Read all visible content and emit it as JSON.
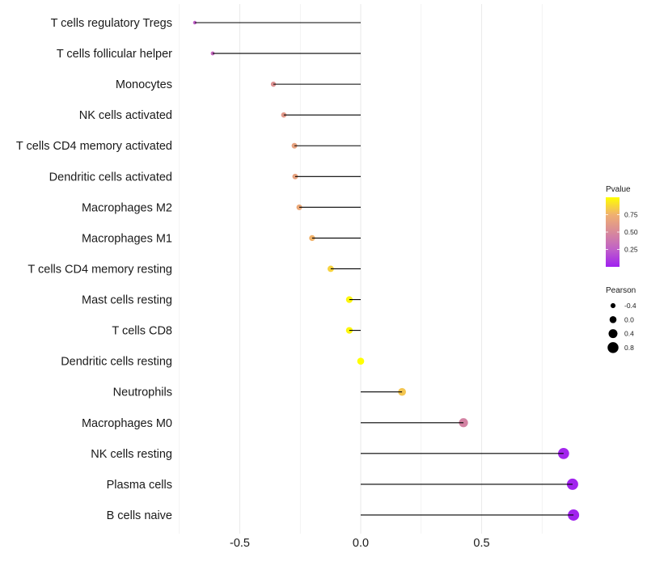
{
  "chart_data": {
    "type": "lollipop",
    "title": "",
    "xlabel": "",
    "ylabel": "",
    "xlim": [
      -0.75,
      0.9
    ],
    "xticks": [
      -0.5,
      0.0,
      0.5
    ],
    "xtick_labels": [
      "-0.5",
      "0.0",
      "0.5"
    ],
    "grid": true,
    "categories": [
      "T cells regulatory  Tregs",
      "T cells follicular helper",
      "Monocytes",
      "NK cells activated",
      "T cells CD4 memory activated",
      "Dendritic cells activated",
      "Macrophages M2",
      "Macrophages M1",
      "T cells CD4 memory resting",
      "Mast cells resting",
      "T cells CD8",
      "Dendritic cells resting",
      "Neutrophils",
      "Macrophages M0",
      "NK cells resting",
      "Plasma cells",
      "B cells naive"
    ],
    "pearson": [
      -0.686,
      -0.612,
      -0.361,
      -0.318,
      -0.274,
      -0.271,
      -0.254,
      -0.201,
      -0.124,
      -0.047,
      -0.047,
      0.0,
      0.171,
      0.425,
      0.839,
      0.876,
      0.88
    ],
    "pvalue": [
      0.25,
      0.3,
      0.55,
      0.6,
      0.66,
      0.66,
      0.7,
      0.76,
      0.86,
      0.97,
      0.97,
      1.0,
      0.82,
      0.45,
      0.02,
      0.01,
      0.01
    ],
    "legend_color": {
      "title": "Pvalue",
      "ticks": [
        0.25,
        0.5,
        0.75
      ],
      "tick_labels": [
        "0.25",
        "0.50",
        "0.75"
      ],
      "range": [
        0.0,
        1.0
      ],
      "stops": [
        "#A020F0",
        "#C060C8",
        "#D88A9A",
        "#F0B070",
        "#FFFF00"
      ],
      "placement": "right"
    },
    "legend_size": {
      "title": "Pearson",
      "values": [
        -0.4,
        0.0,
        0.4,
        0.8
      ],
      "labels": [
        "-0.4",
        "0.0",
        "0.4",
        "0.8"
      ],
      "placement": "right"
    }
  }
}
